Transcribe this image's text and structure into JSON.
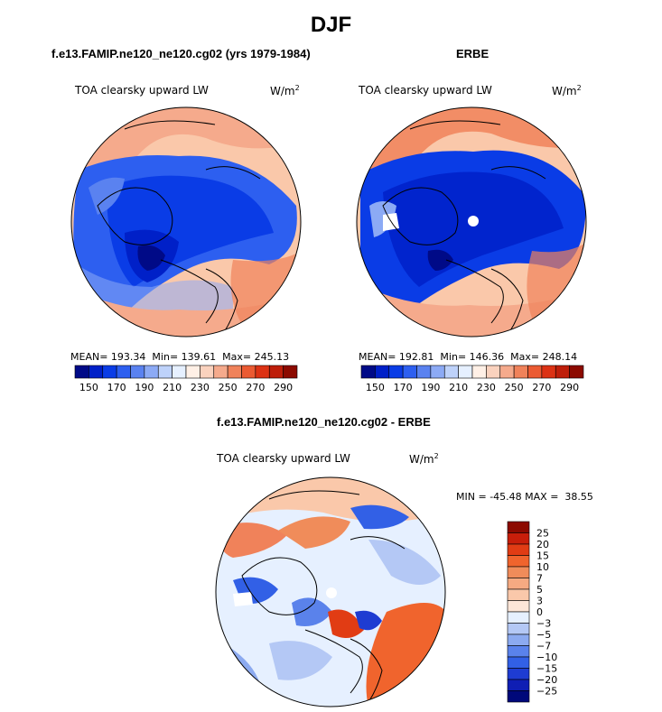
{
  "page": {
    "title": "DJF"
  },
  "panels": [
    {
      "title": "f.e13.FAMIP.ne120_ne120.cg02 (yrs 1979-1984)",
      "variable": "TOA clearsky upward LW",
      "units": "W/m",
      "units_exp": "2",
      "stats": {
        "mean_label": "MEAN=",
        "mean": "193.34",
        "min_label": "Min=",
        "min": "139.61",
        "max_label": "Max=",
        "max": "245.13"
      }
    },
    {
      "title": "ERBE",
      "variable": "TOA clearsky upward LW",
      "units": "W/m",
      "units_exp": "2",
      "stats": {
        "mean_label": "MEAN=",
        "mean": "192.81",
        "min_label": "Min=",
        "min": "146.36",
        "max_label": "Max=",
        "max": "248.14"
      }
    },
    {
      "title": "f.e13.FAMIP.ne120_ne120.cg02 - ERBE",
      "variable": "TOA clearsky upward LW",
      "units": "W/m",
      "units_exp": "2",
      "stats": {
        "min_label": "MIN =",
        "min": "-45.48",
        "max_label": "MAX =",
        "max": "38.55"
      }
    }
  ],
  "colorbar_abs": {
    "labels": [
      "150",
      "170",
      "190",
      "210",
      "230",
      "250",
      "270",
      "290"
    ],
    "colors": [
      "#000a87",
      "#0020c8",
      "#0a3ce6",
      "#2d5ff0",
      "#5a82f0",
      "#8caaf5",
      "#bed2fa",
      "#e6f0ff",
      "#fff0e6",
      "#fad2be",
      "#f5aa8c",
      "#f0825a",
      "#eb5a32",
      "#dc3214",
      "#be1e0a",
      "#8c0a00"
    ]
  },
  "colorbar_diff": {
    "labels": [
      "25",
      "20",
      "15",
      "10",
      "7",
      "5",
      "3",
      "0",
      "−3",
      "−5",
      "−7",
      "−10",
      "−15",
      "−20",
      "−25"
    ],
    "colors": [
      "#8c0a00",
      "#c81e0a",
      "#e13c14",
      "#f0642d",
      "#f08c5a",
      "#f5aa82",
      "#fac8aa",
      "#fde6d8",
      "#e6f0ff",
      "#b4c8f5",
      "#8caaf0",
      "#5a82eb",
      "#3260e6",
      "#1e3cd2",
      "#0f1eb4",
      "#00087a"
    ]
  }
}
